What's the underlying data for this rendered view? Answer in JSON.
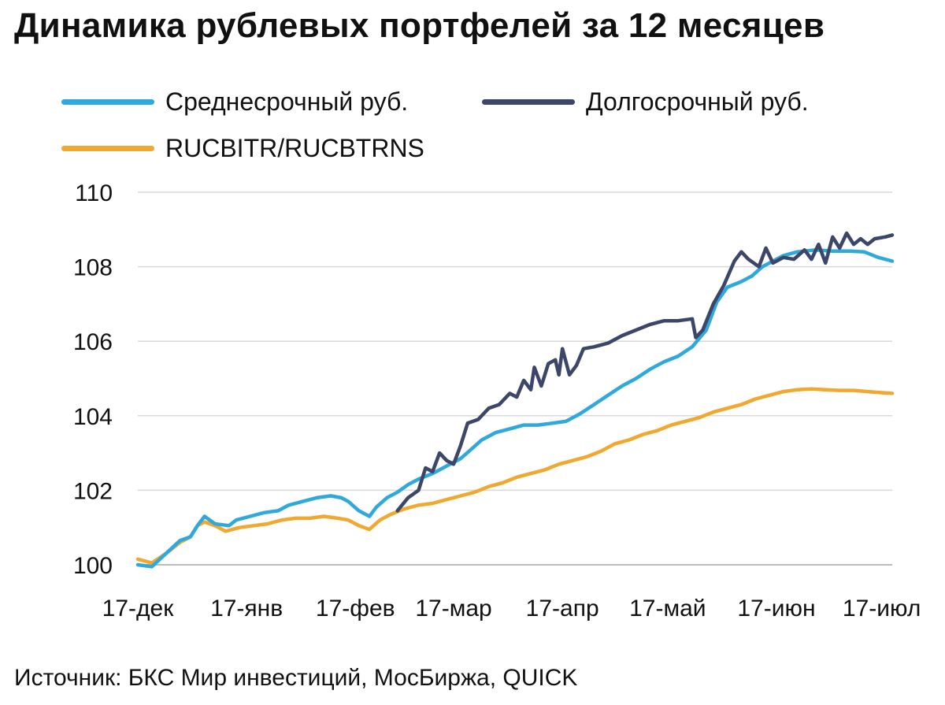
{
  "title": "Динамика рублевых портфелей за 12 месяцев",
  "source": "Источник: БКС Мир инвестиций, МосБиржа, QUICK",
  "chart_data": {
    "type": "line",
    "title": "Динамика рублевых портфелей за 12 месяцев",
    "xlabel": "",
    "ylabel": "",
    "ylim": [
      100,
      110
    ],
    "yticks": [
      "100",
      "102",
      "104",
      "106",
      "108",
      "110"
    ],
    "x_tick_labels": [
      "17-дек",
      "17-янв",
      "17-фев",
      "17-мар",
      "17-апр",
      "17-май",
      "17-июн",
      "17-июл"
    ],
    "x_tick_days": [
      0,
      31,
      62,
      90,
      121,
      151,
      182,
      212
    ],
    "x_range_days": [
      0,
      215
    ],
    "grid": true,
    "legend_position": "top",
    "series": [
      {
        "name": "Среднесрочный руб.",
        "color": "#2fa9dc",
        "points": [
          [
            0,
            100.0
          ],
          [
            4,
            99.95
          ],
          [
            8,
            100.3
          ],
          [
            12,
            100.65
          ],
          [
            15,
            100.75
          ],
          [
            17,
            101.05
          ],
          [
            19,
            101.3
          ],
          [
            22,
            101.1
          ],
          [
            26,
            101.05
          ],
          [
            28,
            101.2
          ],
          [
            32,
            101.3
          ],
          [
            36,
            101.4
          ],
          [
            40,
            101.45
          ],
          [
            43,
            101.6
          ],
          [
            47,
            101.7
          ],
          [
            51,
            101.8
          ],
          [
            55,
            101.85
          ],
          [
            58,
            101.8
          ],
          [
            60,
            101.7
          ],
          [
            63,
            101.45
          ],
          [
            66,
            101.3
          ],
          [
            68,
            101.55
          ],
          [
            71,
            101.8
          ],
          [
            74,
            101.95
          ],
          [
            77,
            102.15
          ],
          [
            80,
            102.3
          ],
          [
            84,
            102.45
          ],
          [
            87,
            102.6
          ],
          [
            90,
            102.75
          ],
          [
            92,
            102.85
          ],
          [
            95,
            103.1
          ],
          [
            98,
            103.35
          ],
          [
            102,
            103.55
          ],
          [
            106,
            103.65
          ],
          [
            110,
            103.75
          ],
          [
            114,
            103.75
          ],
          [
            118,
            103.8
          ],
          [
            122,
            103.85
          ],
          [
            126,
            104.05
          ],
          [
            130,
            104.3
          ],
          [
            134,
            104.55
          ],
          [
            138,
            104.8
          ],
          [
            142,
            105.0
          ],
          [
            146,
            105.25
          ],
          [
            150,
            105.45
          ],
          [
            154,
            105.6
          ],
          [
            158,
            105.85
          ],
          [
            162,
            106.3
          ],
          [
            165,
            107.05
          ],
          [
            168,
            107.45
          ],
          [
            172,
            107.6
          ],
          [
            175,
            107.75
          ],
          [
            178,
            108.0
          ],
          [
            181,
            108.15
          ],
          [
            184,
            108.3
          ],
          [
            188,
            108.4
          ],
          [
            193,
            108.45
          ],
          [
            198,
            108.42
          ],
          [
            203,
            108.42
          ],
          [
            207,
            108.4
          ],
          [
            211,
            108.25
          ],
          [
            215,
            108.15
          ]
        ]
      },
      {
        "name": "Долгосрочный руб.",
        "color": "#3b4668",
        "points": [
          [
            74,
            101.45
          ],
          [
            77,
            101.8
          ],
          [
            80,
            102.0
          ],
          [
            82,
            102.6
          ],
          [
            84,
            102.5
          ],
          [
            86,
            103.0
          ],
          [
            88,
            102.8
          ],
          [
            90,
            102.7
          ],
          [
            92,
            103.2
          ],
          [
            94,
            103.8
          ],
          [
            97,
            103.9
          ],
          [
            100,
            104.2
          ],
          [
            103,
            104.3
          ],
          [
            106,
            104.6
          ],
          [
            108,
            104.5
          ],
          [
            110,
            104.95
          ],
          [
            112,
            104.7
          ],
          [
            113,
            105.3
          ],
          [
            115,
            104.8
          ],
          [
            117,
            105.4
          ],
          [
            119,
            105.5
          ],
          [
            120,
            105.1
          ],
          [
            121,
            105.8
          ],
          [
            123,
            105.1
          ],
          [
            125,
            105.35
          ],
          [
            127,
            105.8
          ],
          [
            130,
            105.85
          ],
          [
            134,
            105.95
          ],
          [
            138,
            106.15
          ],
          [
            142,
            106.3
          ],
          [
            146,
            106.45
          ],
          [
            150,
            106.55
          ],
          [
            154,
            106.55
          ],
          [
            158,
            106.6
          ],
          [
            159,
            106.1
          ],
          [
            161,
            106.3
          ],
          [
            164,
            107.0
          ],
          [
            167,
            107.5
          ],
          [
            170,
            108.15
          ],
          [
            172,
            108.4
          ],
          [
            174,
            108.2
          ],
          [
            177,
            108.0
          ],
          [
            179,
            108.5
          ],
          [
            181,
            108.1
          ],
          [
            184,
            108.25
          ],
          [
            187,
            108.2
          ],
          [
            190,
            108.45
          ],
          [
            192,
            108.2
          ],
          [
            194,
            108.6
          ],
          [
            196,
            108.1
          ],
          [
            198,
            108.8
          ],
          [
            200,
            108.5
          ],
          [
            202,
            108.9
          ],
          [
            204,
            108.6
          ],
          [
            206,
            108.75
          ],
          [
            208,
            108.6
          ],
          [
            210,
            108.75
          ],
          [
            213,
            108.8
          ],
          [
            215,
            108.85
          ]
        ]
      },
      {
        "name": "RUCBITR/RUCBTRNS",
        "color": "#f0a830",
        "points": [
          [
            0,
            100.15
          ],
          [
            4,
            100.05
          ],
          [
            8,
            100.3
          ],
          [
            12,
            100.6
          ],
          [
            15,
            100.75
          ],
          [
            17,
            101.05
          ],
          [
            19,
            101.15
          ],
          [
            22,
            101.05
          ],
          [
            25,
            100.9
          ],
          [
            29,
            101.0
          ],
          [
            33,
            101.05
          ],
          [
            37,
            101.1
          ],
          [
            41,
            101.2
          ],
          [
            45,
            101.25
          ],
          [
            49,
            101.25
          ],
          [
            53,
            101.3
          ],
          [
            57,
            101.25
          ],
          [
            60,
            101.2
          ],
          [
            63,
            101.05
          ],
          [
            66,
            100.95
          ],
          [
            69,
            101.2
          ],
          [
            72,
            101.35
          ],
          [
            76,
            101.5
          ],
          [
            80,
            101.6
          ],
          [
            84,
            101.65
          ],
          [
            88,
            101.75
          ],
          [
            92,
            101.85
          ],
          [
            96,
            101.95
          ],
          [
            100,
            102.1
          ],
          [
            104,
            102.2
          ],
          [
            108,
            102.35
          ],
          [
            112,
            102.45
          ],
          [
            116,
            102.55
          ],
          [
            120,
            102.7
          ],
          [
            124,
            102.8
          ],
          [
            128,
            102.9
          ],
          [
            132,
            103.05
          ],
          [
            136,
            103.25
          ],
          [
            140,
            103.35
          ],
          [
            144,
            103.5
          ],
          [
            148,
            103.6
          ],
          [
            152,
            103.75
          ],
          [
            156,
            103.85
          ],
          [
            160,
            103.95
          ],
          [
            164,
            104.1
          ],
          [
            168,
            104.2
          ],
          [
            172,
            104.3
          ],
          [
            176,
            104.45
          ],
          [
            180,
            104.55
          ],
          [
            184,
            104.65
          ],
          [
            188,
            104.7
          ],
          [
            192,
            104.72
          ],
          [
            196,
            104.7
          ],
          [
            200,
            104.68
          ],
          [
            204,
            104.68
          ],
          [
            208,
            104.65
          ],
          [
            212,
            104.62
          ],
          [
            215,
            104.6
          ]
        ]
      }
    ]
  }
}
